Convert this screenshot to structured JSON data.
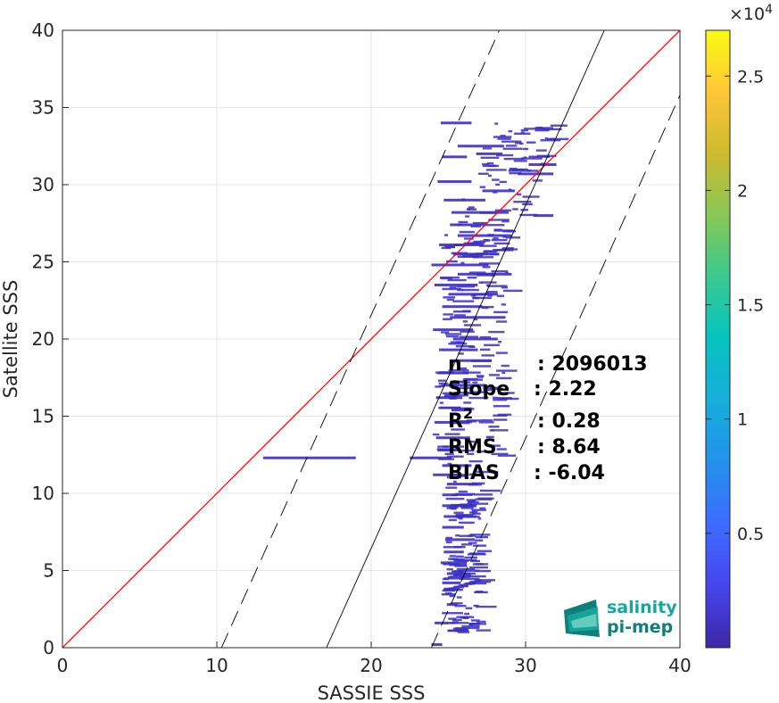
{
  "chart_data": {
    "type": "heatmap",
    "title": "",
    "xlabel": "SASSIE SSS",
    "ylabel": "Satellite SSS",
    "xlim": [
      0,
      40
    ],
    "ylim": [
      0,
      40
    ],
    "xticks": [
      "0",
      "10",
      "20",
      "30",
      "40"
    ],
    "yticks": [
      "0",
      "5",
      "10",
      "15",
      "20",
      "25",
      "30",
      "35",
      "40"
    ],
    "grid": true,
    "colorbar": {
      "ticks": [
        "0.5",
        "1",
        "1.5",
        "2",
        "2.5"
      ],
      "tick_values": [
        5000,
        10000,
        15000,
        20000,
        25000
      ],
      "exponent_label": "×10",
      "exponent_power": "4",
      "range": [
        0,
        27000
      ],
      "colormap": "parula"
    },
    "identity_line": {
      "x": [
        0,
        40
      ],
      "y": [
        0,
        40
      ],
      "color": "#ff0000"
    },
    "regression_line": {
      "slope": 2.22,
      "x": [
        17.1,
        35.1
      ],
      "y": [
        0,
        40
      ],
      "color": "#000000"
    },
    "confidence_lines": [
      {
        "x": [
          10.3,
          28.3
        ],
        "y": [
          0,
          40
        ]
      },
      {
        "x": [
          23.9,
          40
        ],
        "y": [
          0,
          35.8
        ]
      }
    ],
    "stats": [
      {
        "label": "n",
        "value": ": 2096013"
      },
      {
        "label": "Slope",
        "value": ": 2.22"
      },
      {
        "label": "R",
        "sup": "2",
        "value": ": 0.28"
      },
      {
        "label": "RMS",
        "value": ": 8.64"
      },
      {
        "label": "BIAS",
        "value": ": -6.04"
      }
    ],
    "density_segments": [
      {
        "x": [
          24.5,
          26.5
        ],
        "y": 34.0
      },
      {
        "x": [
          25.6,
          28.6
        ],
        "y": 32.5
      },
      {
        "x": [
          24.6,
          26.2
        ],
        "y": 31.8
      },
      {
        "x": [
          26.8,
          28.5
        ],
        "y": 32.0
      },
      {
        "x": [
          30.2,
          32.0
        ],
        "y": 31.3
      },
      {
        "x": [
          29.5,
          31.8
        ],
        "y": 30.7
      },
      {
        "x": [
          24.3,
          26.5
        ],
        "y": 30.2
      },
      {
        "x": [
          27.2,
          29.3
        ],
        "y": 29.6
      },
      {
        "x": [
          24.7,
          27.4
        ],
        "y": 29.0
      },
      {
        "x": [
          25.2,
          28.9
        ],
        "y": 28.2
      },
      {
        "x": [
          30.5,
          31.8
        ],
        "y": 28.0
      },
      {
        "x": [
          25.1,
          27.4
        ],
        "y": 27.4
      },
      {
        "x": [
          25.6,
          29.1
        ],
        "y": 26.7
      },
      {
        "x": [
          24.4,
          27.3
        ],
        "y": 26.1
      },
      {
        "x": [
          25.3,
          28.3
        ],
        "y": 25.5
      },
      {
        "x": [
          23.9,
          27.6
        ],
        "y": 24.8
      },
      {
        "x": [
          25.6,
          29.1
        ],
        "y": 24.2
      },
      {
        "x": [
          24.1,
          26.9
        ],
        "y": 23.5
      },
      {
        "x": [
          25.0,
          28.2
        ],
        "y": 22.9
      },
      {
        "x": [
          24.6,
          27.2
        ],
        "y": 22.1
      },
      {
        "x": [
          25.1,
          28.7
        ],
        "y": 21.4
      },
      {
        "x": [
          24.0,
          26.6
        ],
        "y": 20.6
      },
      {
        "x": [
          25.3,
          28.2
        ],
        "y": 20.0
      },
      {
        "x": [
          24.4,
          26.9
        ],
        "y": 19.3
      },
      {
        "x": [
          25.2,
          27.8
        ],
        "y": 18.6
      },
      {
        "x": [
          24.3,
          26.3
        ],
        "y": 17.8
      },
      {
        "x": [
          25.0,
          27.4
        ],
        "y": 17.0
      },
      {
        "x": [
          24.2,
          25.9
        ],
        "y": 16.2
      },
      {
        "x": [
          25.2,
          26.5
        ],
        "y": 15.4
      },
      {
        "x": [
          24.1,
          25.6
        ],
        "y": 14.6
      },
      {
        "x": [
          24.2,
          26.4
        ],
        "y": 13.6
      },
      {
        "x": [
          24.3,
          25.6
        ],
        "y": 12.8
      },
      {
        "x": [
          13.0,
          19.0
        ],
        "y": 12.3
      },
      {
        "x": [
          22.5,
          25.2
        ],
        "y": 12.3
      },
      {
        "x": [
          24.6,
          26.5
        ],
        "y": 11.8
      },
      {
        "x": [
          24.0,
          25.6
        ],
        "y": 11.2
      },
      {
        "x": [
          24.9,
          26.9
        ],
        "y": 10.6
      },
      {
        "x": [
          24.6,
          25.6
        ],
        "y": 9.9
      },
      {
        "x": [
          24.6,
          26.6
        ],
        "y": 9.2
      },
      {
        "x": [
          24.7,
          26.8
        ],
        "y": 8.5
      },
      {
        "x": [
          24.6,
          26.0
        ],
        "y": 7.8
      },
      {
        "x": [
          24.8,
          26.7
        ],
        "y": 7.0
      },
      {
        "x": [
          24.7,
          26.0
        ],
        "y": 6.2
      },
      {
        "x": [
          24.5,
          26.2
        ],
        "y": 5.5
      },
      {
        "x": [
          24.9,
          26.4
        ],
        "y": 4.8
      },
      {
        "x": [
          24.6,
          25.8
        ],
        "y": 4.2
      },
      {
        "x": [
          24.7,
          25.3
        ],
        "y": 3.8
      },
      {
        "x": [
          24.9,
          25.6
        ],
        "y": 2.8
      },
      {
        "x": [
          24.1,
          25.0
        ],
        "y": 1.6
      },
      {
        "x": [
          23.9,
          24.6
        ],
        "y": 0.2
      }
    ]
  },
  "logo": {
    "line1": "salinity",
    "line2": "pi-mep"
  },
  "colors": {
    "identity": "#ff0000",
    "data": "#3b2fc4",
    "logo_teal": "#13a89e"
  }
}
